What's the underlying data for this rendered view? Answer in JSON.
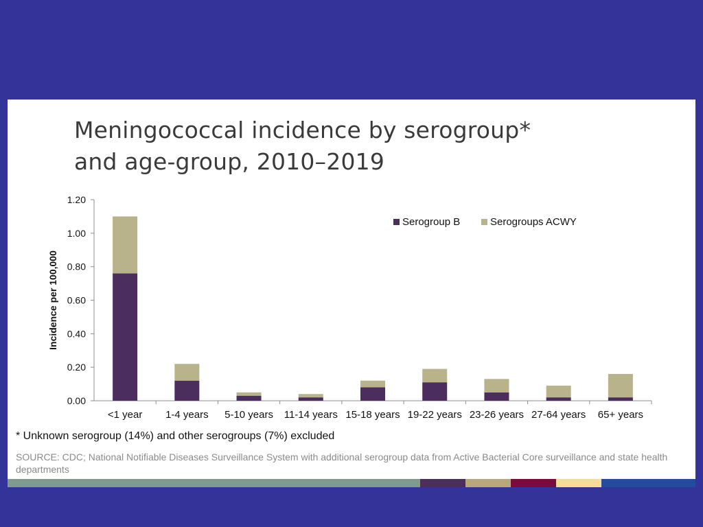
{
  "slide": {
    "title_line1": "Meningococcal incidence by serogroup*",
    "title_line2": "and age-group, 2010–2019",
    "footnote": "* Unknown serogroup (14%) and other serogroups (7%) excluded",
    "source": "SOURCE: CDC; National Notifiable Diseases Surveillance System with additional serogroup data from Active Bacterial Core surveillance and state health departments"
  },
  "colors": {
    "background": "#333399",
    "serogroup_b": "#4b2e5e",
    "serogroups_acwy": "#b8b38a",
    "bottom_bar": [
      "#7f9a8f",
      "#4b2e5e",
      "#b8a77a",
      "#7a0a3a",
      "#f6dc96",
      "#244c9c"
    ]
  },
  "chart_data": {
    "type": "bar",
    "stacked": true,
    "categories": [
      "<1 year",
      "1-4 years",
      "5-10 years",
      "11-14 years",
      "15-18 years",
      "19-22 years",
      "23-26 years",
      "27-64 years",
      "65+ years"
    ],
    "series": [
      {
        "name": "Serogroup B",
        "values": [
          0.76,
          0.12,
          0.03,
          0.02,
          0.08,
          0.11,
          0.05,
          0.02,
          0.02
        ]
      },
      {
        "name": "Serogroups ACWY",
        "values": [
          0.34,
          0.1,
          0.02,
          0.02,
          0.04,
          0.08,
          0.08,
          0.07,
          0.14
        ]
      }
    ],
    "ylabel": "Incidence per 100,000",
    "xlabel": "",
    "ylim": [
      0,
      1.2
    ],
    "yticks": [
      "0.00",
      "0.20",
      "0.40",
      "0.60",
      "0.80",
      "1.00",
      "1.20"
    ],
    "grid": false,
    "legend_position": "top-right"
  }
}
